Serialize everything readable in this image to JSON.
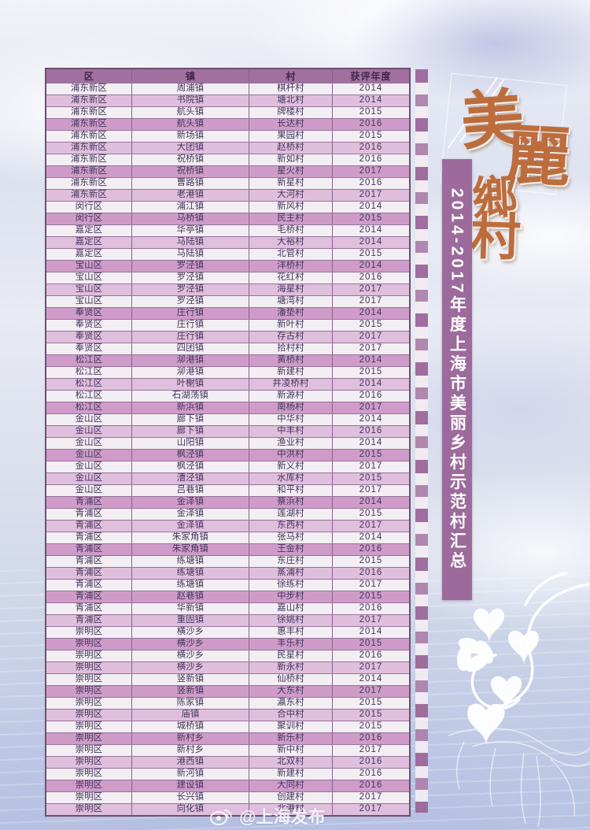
{
  "banner": {
    "text": "2014-2017年度上海市美丽乡村示范村汇总",
    "bg_color": "#9c6b9c",
    "text_color": "#ffffff"
  },
  "calligraphy": {
    "chars": [
      "美",
      "麗",
      "鄉",
      "村"
    ],
    "color": "#bd6d3d"
  },
  "watermark": {
    "handle": "@上海发布",
    "icon": "weibo-icon"
  },
  "colors": {
    "header_bg": "#a2709f",
    "header_text": "#41264a",
    "stripe_white": "#f3eef3",
    "stripe_pink": "#e0bedd",
    "stripe_dark_pink": "#cf9cca",
    "border": "#6d4f70"
  },
  "table": {
    "headers": [
      "区",
      "镇",
      "村",
      "获评年度"
    ],
    "rows": [
      [
        "浦东新区",
        "周浦镇",
        "棋杆村",
        "2014"
      ],
      [
        "浦东新区",
        "书院镇",
        "塘北村",
        "2014"
      ],
      [
        "浦东新区",
        "航头镇",
        "牌楼村",
        "2015"
      ],
      [
        "浦东新区",
        "航头镇",
        "长达村",
        "2016"
      ],
      [
        "浦东新区",
        "新场镇",
        "果园村",
        "2015"
      ],
      [
        "浦东新区",
        "大团镇",
        "赵桥村",
        "2016"
      ],
      [
        "浦东新区",
        "祝桥镇",
        "新如村",
        "2016"
      ],
      [
        "浦东新区",
        "祝桥镇",
        "星火村",
        "2017"
      ],
      [
        "浦东新区",
        "曹路镇",
        "新星村",
        "2016"
      ],
      [
        "浦东新区",
        "老港镇",
        "大河村",
        "2017"
      ],
      [
        "闵行区",
        "浦江镇",
        "新风村",
        "2014"
      ],
      [
        "闵行区",
        "马桥镇",
        "民主村",
        "2015"
      ],
      [
        "嘉定区",
        "华亭镇",
        "毛桥村",
        "2014"
      ],
      [
        "嘉定区",
        "马陆镇",
        "大裕村",
        "2014"
      ],
      [
        "嘉定区",
        "马陆镇",
        "北管村",
        "2015"
      ],
      [
        "宝山区",
        "罗泾镇",
        "洋桥村",
        "2014"
      ],
      [
        "宝山区",
        "罗泾镇",
        "花红村",
        "2016"
      ],
      [
        "宝山区",
        "罗泾镇",
        "海星村",
        "2017"
      ],
      [
        "宝山区",
        "罗泾镇",
        "塘湾村",
        "2017"
      ],
      [
        "奉贤区",
        "庄行镇",
        "潘垫村",
        "2014"
      ],
      [
        "奉贤区",
        "庄行镇",
        "新叶村",
        "2015"
      ],
      [
        "奉贤区",
        "庄行镇",
        "存古村",
        "2017"
      ],
      [
        "奉贤区",
        "四团镇",
        "拾村村",
        "2017"
      ],
      [
        "松江区",
        "泖港镇",
        "黄桥村",
        "2014"
      ],
      [
        "松江区",
        "泖港镇",
        "新建村",
        "2015"
      ],
      [
        "松江区",
        "叶榭镇",
        "井凌桥村",
        "2014"
      ],
      [
        "松江区",
        "石湖荡镇",
        "新源村",
        "2016"
      ],
      [
        "松江区",
        "新浜镇",
        "南杨村",
        "2017"
      ],
      [
        "金山区",
        "廊下镇",
        "中华村",
        "2014"
      ],
      [
        "金山区",
        "廊下镇",
        "中丰村",
        "2016"
      ],
      [
        "金山区",
        "山阳镇",
        "渔业村",
        "2014"
      ],
      [
        "金山区",
        "枫泾镇",
        "中洪村",
        "2015"
      ],
      [
        "金山区",
        "枫泾镇",
        "新义村",
        "2017"
      ],
      [
        "金山区",
        "漕泾镇",
        "水库村",
        "2015"
      ],
      [
        "金山区",
        "吕巷镇",
        "和平村",
        "2017"
      ],
      [
        "青浦区",
        "金泽镇",
        "蔡浜村",
        "2014"
      ],
      [
        "青浦区",
        "金泽镇",
        "莲湖村",
        "2015"
      ],
      [
        "青浦区",
        "金泽镇",
        "东西村",
        "2017"
      ],
      [
        "青浦区",
        "朱家角镇",
        "张马村",
        "2014"
      ],
      [
        "青浦区",
        "朱家角镇",
        "王金村",
        "2016"
      ],
      [
        "青浦区",
        "练塘镇",
        "东庄村",
        "2015"
      ],
      [
        "青浦区",
        "练塘镇",
        "蒸浦村",
        "2016"
      ],
      [
        "青浦区",
        "练塘镇",
        "徐练村",
        "2017"
      ],
      [
        "青浦区",
        "赵巷镇",
        "中步村",
        "2015"
      ],
      [
        "青浦区",
        "华新镇",
        "嘉山村",
        "2016"
      ],
      [
        "青浦区",
        "重固镇",
        "徐姚村",
        "2017"
      ],
      [
        "崇明区",
        "横沙乡",
        "惠丰村",
        "2014"
      ],
      [
        "崇明区",
        "横沙乡",
        "丰乐村",
        "2015"
      ],
      [
        "崇明区",
        "横沙乡",
        "民星村",
        "2016"
      ],
      [
        "崇明区",
        "横沙乡",
        "新永村",
        "2017"
      ],
      [
        "崇明区",
        "竖新镇",
        "仙桥村",
        "2014"
      ],
      [
        "崇明区",
        "竖新镇",
        "大东村",
        "2017"
      ],
      [
        "崇明区",
        "陈家镇",
        "瀛东村",
        "2015"
      ],
      [
        "崇明区",
        "庙镇",
        "合中村",
        "2015"
      ],
      [
        "崇明区",
        "城桥镇",
        "聚训村",
        "2015"
      ],
      [
        "崇明区",
        "新村乡",
        "新乐村",
        "2016"
      ],
      [
        "崇明区",
        "新村乡",
        "新中村",
        "2017"
      ],
      [
        "崇明区",
        "港西镇",
        "北双村",
        "2016"
      ],
      [
        "崇明区",
        "新河镇",
        "新建村",
        "2016"
      ],
      [
        "崇明区",
        "建设镇",
        "大同村",
        "2016"
      ],
      [
        "崇明区",
        "长兴镇",
        "创建村",
        "2017"
      ],
      [
        "崇明区",
        "向化镇",
        "北港村",
        "2017"
      ]
    ]
  }
}
